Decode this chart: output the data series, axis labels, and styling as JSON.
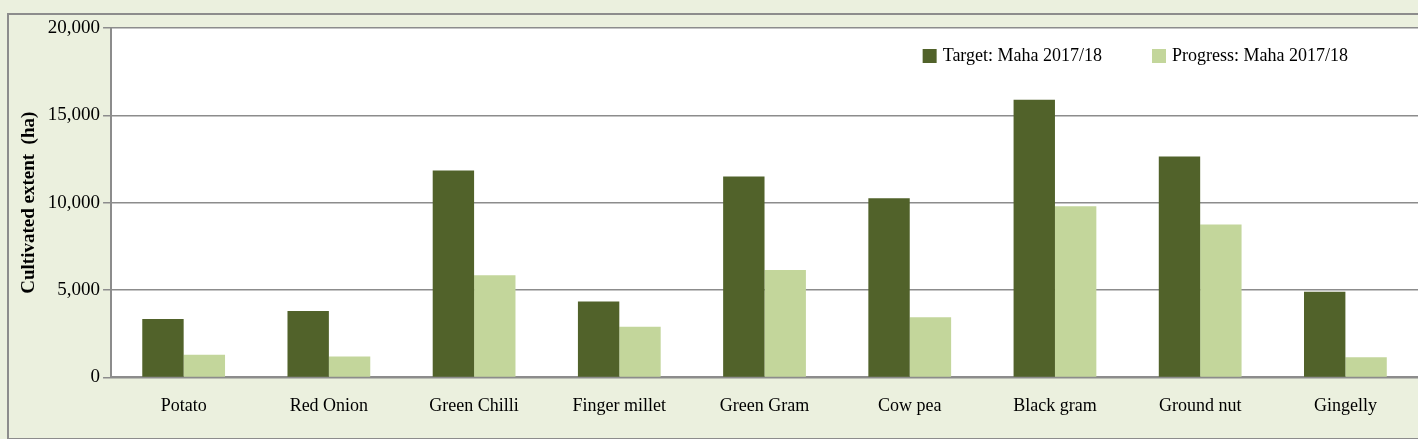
{
  "chart_data": {
    "type": "bar",
    "ylabel": "Cultivated extent  (ha)",
    "categories": [
      "Potato",
      "Red Onion",
      "Green Chilli",
      "Finger millet",
      "Green Gram",
      "Cow pea",
      "Black gram",
      "Ground nut",
      "Gingelly"
    ],
    "series": [
      {
        "name": "Target: Maha 2017/18",
        "color": "#51622a",
        "values": [
          3350,
          3800,
          11850,
          4350,
          11500,
          10250,
          15900,
          12650,
          4900
        ]
      },
      {
        "name": "Progress: Maha 2017/18",
        "color": "#c3d69b",
        "values": [
          1300,
          1200,
          5850,
          2900,
          6150,
          3450,
          9800,
          8750,
          1150
        ]
      }
    ],
    "ylim": [
      0,
      20000
    ],
    "yticks": [
      {
        "value": 0,
        "label": "0"
      },
      {
        "value": 5000,
        "label": "5,000"
      },
      {
        "value": 10000,
        "label": "10,000"
      },
      {
        "value": 15000,
        "label": "15,000"
      },
      {
        "value": 20000,
        "label": "20,000"
      }
    ],
    "grid": "y",
    "legend": "top right"
  }
}
